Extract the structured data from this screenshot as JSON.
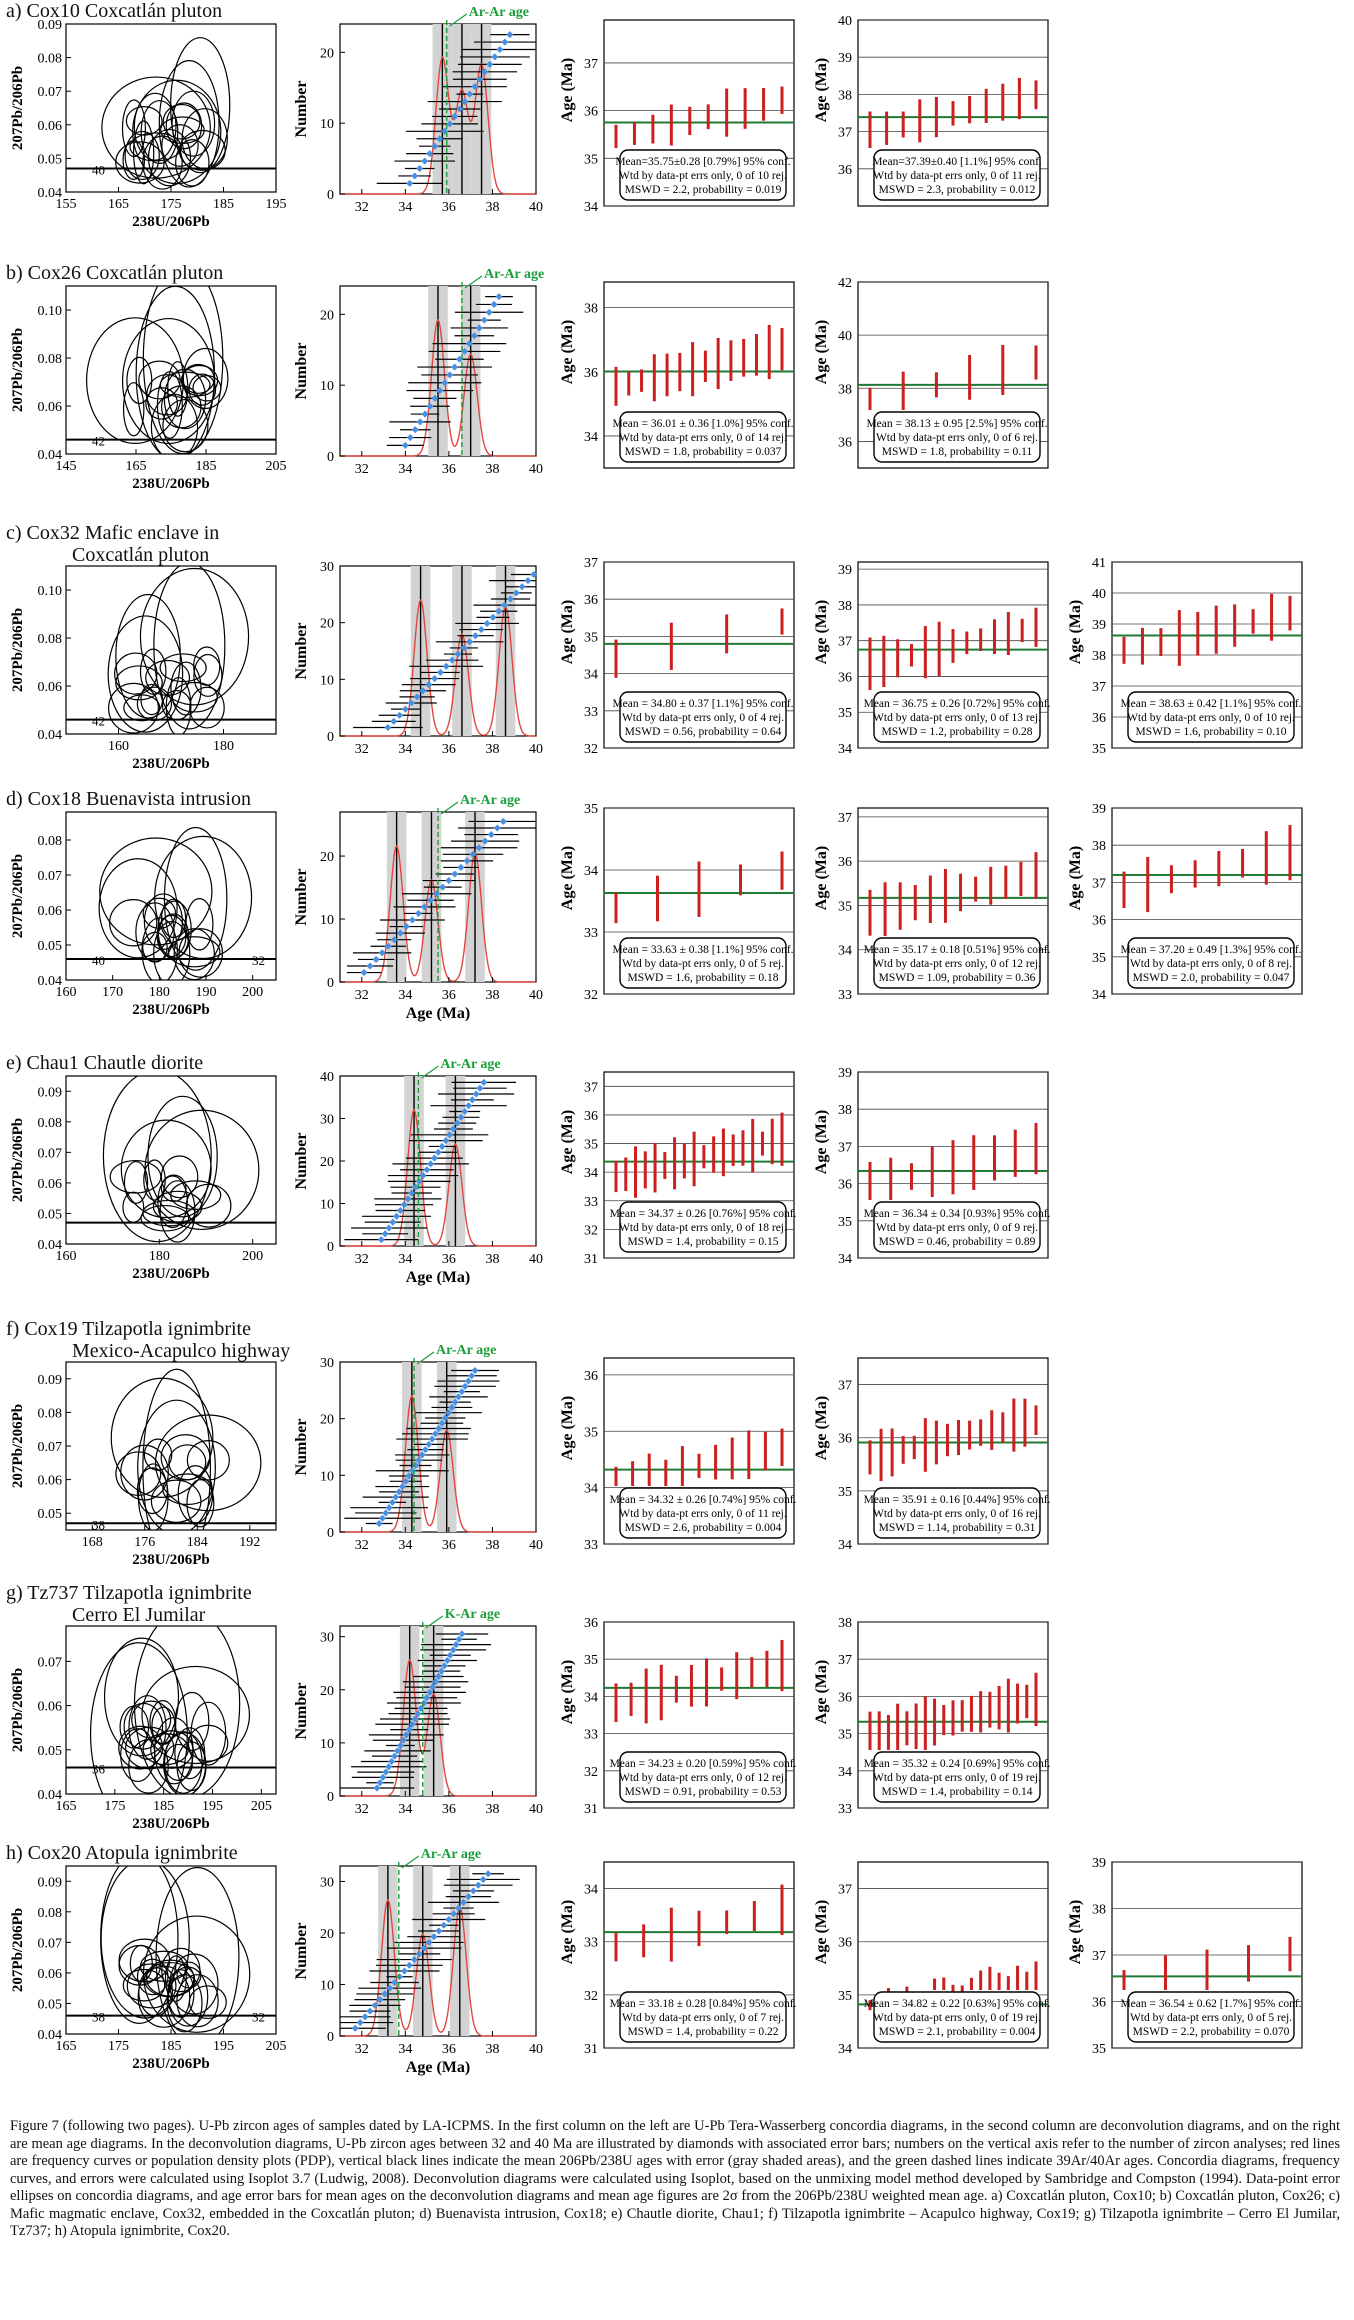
{
  "figure": {
    "caption": "Figure 7 (following two pages). U-Pb zircon ages of samples dated by LA-ICPMS. In the first column on the left are U-Pb Tera-Wasserberg concordia diagrams, in the second column are deconvolution diagrams, and on the right are mean age diagrams. In the deconvolution diagrams, U-Pb zircon ages between 32 and 40 Ma are illustrated by diamonds with associated error bars; numbers on the vertical axis refer to the number of zircon analyses; red lines are frequency curves or population density plots (PDP), vertical black lines indicate the mean 206Pb/238U ages with error (gray shaded areas), and the green dashed lines indicate 39Ar/40Ar ages. Concordia diagrams, frequency curves, and errors were calculated using Isoplot 3.7 (Ludwig, 2008). Deconvolution diagrams were calculated using Isoplot, based on the unmixing model method developed by Sambridge and Compston (1994). Data-point error ellipses on concordia diagrams, and age error bars for mean ages on the deconvolution diagrams and mean age figures are 2σ from the 206Pb/238U weighted mean age. a) Coxcatlán pluton, Cox10; b) Coxcatlán pluton, Cox26; c) Mafic magmatic enclave, Cox32, embedded in the Coxcatlán pluton; d) Buenavista intrusion, Cox18; e) Chautle diorite, Chau1; f) Tilzapotla ignimbrite – Acapulco highway, Cox19; g) Tilzapotla ignimbrite – Cerro El Jumilar, Tz737; h) Atopula ignimbrite, Cox20."
  },
  "labels": {
    "conc_y": "207Pb/206Pb",
    "conc_x": "238U/206Pb",
    "decon_y": "Number",
    "decon_x": "Age (Ma)",
    "age_y": "Age (Ma)"
  },
  "chart_data": [
    {
      "id": "a",
      "type": "scatter",
      "title": "a) Cox10 Coxcatlán pluton",
      "concordia": {
        "xticks": [
          "155",
          "165",
          "175",
          "185",
          "195"
        ],
        "yticks": [
          "0.04",
          "0.05",
          "0.06",
          "0.07",
          "0.08",
          "0.09"
        ],
        "xlim": [
          155,
          195
        ],
        "ylim": [
          0.04,
          0.09
        ],
        "ref_label": "40",
        "ref_y": 0.047
      },
      "decon": {
        "xticks": [
          "32",
          "34",
          "36",
          "38",
          "40"
        ],
        "yticks": [
          "0",
          "10",
          "20"
        ],
        "xlim": [
          31,
          40
        ],
        "ymax": 24,
        "means": [
          35.7,
          36.6,
          37.5
        ],
        "argon": 35.9,
        "arlabel": "Ar-Ar age",
        "n": 21
      },
      "mean_ages": [
        {
          "ylim": [
            34,
            37.9
          ],
          "yticks": [
            "34",
            "35",
            "36",
            "37"
          ],
          "mean": 35.75,
          "n": 10,
          "text": [
            "Mean=35.75±0.28 [0.79%] 95% conf.",
            "Wtd by data-pt errs only, 0 of 10 rej.",
            "MSWD = 2.2, probability = 0.019"
          ]
        },
        {
          "ylim": [
            35,
            40
          ],
          "yticks": [
            "36",
            "37",
            "38",
            "39",
            "40"
          ],
          "mean": 37.39,
          "n": 11,
          "text": [
            "Mean=37.39±0.40 [1.1%] 95% conf.",
            "Wtd by data-pt errs only, 0 of 11 rej.",
            "MSWD = 2.3, probability = 0.012"
          ]
        }
      ]
    },
    {
      "id": "b",
      "type": "scatter",
      "title": "b) Cox26 Coxcatlán pluton",
      "concordia": {
        "xticks": [
          "145",
          "165",
          "185",
          "205"
        ],
        "yticks": [
          "0.04",
          "0.06",
          "0.08",
          "0.10"
        ],
        "xlim": [
          145,
          205
        ],
        "ylim": [
          0.04,
          0.11
        ],
        "ref_label": "42",
        "ref_y": 0.046
      },
      "decon": {
        "xticks": [
          "32",
          "34",
          "36",
          "38",
          "40"
        ],
        "yticks": [
          "0",
          "10",
          "20"
        ],
        "xlim": [
          31,
          40
        ],
        "ymax": 24,
        "means": [
          35.5,
          37.0
        ],
        "argon": 36.6,
        "arlabel": "Ar-Ar age",
        "n": 20
      },
      "mean_ages": [
        {
          "ylim": [
            33,
            38.8
          ],
          "yticks": [
            "34",
            "36",
            "38"
          ],
          "mean": 36.01,
          "n": 14,
          "text": [
            "Mean = 36.01 ± 0.36 [1.0%] 95% conf.",
            "Wtd by data-pt errs only, 0 of 14 rej.",
            "MSWD = 1.8, probability = 0.037"
          ]
        },
        {
          "ylim": [
            35,
            42
          ],
          "yticks": [
            "36",
            "38",
            "40",
            "42"
          ],
          "mean": 38.13,
          "n": 6,
          "text": [
            "Mean = 38.13 ± 0.95 [2.5%] 95% conf.",
            "Wtd by data-pt errs only, 0 of 6 rej.",
            "MSWD = 1.8, probability = 0.11"
          ]
        }
      ]
    },
    {
      "id": "c",
      "type": "scatter",
      "title": "c) Cox32 Mafic enclave in",
      "title2": "Coxcatlán pluton",
      "concordia": {
        "xticks": [
          "160",
          "180"
        ],
        "yticks": [
          "0.04",
          "0.06",
          "0.08",
          "0.10"
        ],
        "xlim": [
          150,
          190
        ],
        "ylim": [
          0.04,
          0.11
        ],
        "ref_label": "42",
        "ref_y": 0.046
      },
      "decon": {
        "xticks": [
          "32",
          "34",
          "36",
          "38",
          "40"
        ],
        "yticks": [
          "0",
          "10",
          "20",
          "30"
        ],
        "xlim": [
          31,
          40
        ],
        "ymax": 30,
        "means": [
          34.7,
          36.6,
          38.6
        ],
        "argon": null,
        "arlabel": "",
        "n": 26
      },
      "mean_ages": [
        {
          "ylim": [
            32,
            37
          ],
          "yticks": [
            "32",
            "33",
            "34",
            "35",
            "36",
            "37"
          ],
          "mean": 34.8,
          "n": 4,
          "text": [
            "Mean = 34.80 ± 0.37 [1.1%] 95% conf.",
            "Wtd by data-pt errs only, 0 of 4 rej.",
            "MSWD = 0.56, probability = 0.64"
          ]
        },
        {
          "ylim": [
            34,
            39.2
          ],
          "yticks": [
            "34",
            "35",
            "36",
            "37",
            "38",
            "39"
          ],
          "mean": 36.75,
          "n": 13,
          "text": [
            "Mean = 36.75 ± 0.26 [0.72%] 95% conf.",
            "Wtd by data-pt errs only, 0 of 13 rej.",
            "MSWD = 1.2, probability = 0.28"
          ]
        },
        {
          "ylim": [
            35,
            41
          ],
          "yticks": [
            "35",
            "36",
            "37",
            "38",
            "39",
            "40",
            "41"
          ],
          "mean": 38.63,
          "n": 10,
          "text": [
            "Mean = 38.63 ± 0.42 [1.1%] 95% conf.",
            "Wtd by data-pt errs only, 0 of 10 rej.",
            "MSWD = 1.6, probability = 0.10"
          ]
        }
      ]
    },
    {
      "id": "d",
      "type": "scatter",
      "title": "d) Cox18 Buenavista intrusion",
      "concordia": {
        "xticks": [
          "160",
          "170",
          "180",
          "190",
          "200"
        ],
        "yticks": [
          "0.04",
          "0.05",
          "0.06",
          "0.07",
          "0.08"
        ],
        "xlim": [
          160,
          205
        ],
        "ylim": [
          0.04,
          0.088
        ],
        "ref_label": "40",
        "ref_y": 0.046,
        "ref_label2": "32"
      },
      "decon": {
        "xticks": [
          "32",
          "34",
          "36",
          "38",
          "40"
        ],
        "yticks": [
          "0",
          "10",
          "20"
        ],
        "xlim": [
          31,
          40
        ],
        "ymax": 27,
        "means": [
          33.6,
          35.2,
          37.2
        ],
        "argon": 35.5,
        "arlabel": "Ar-Ar age",
        "n": 24
      },
      "mean_ages": [
        {
          "ylim": [
            32,
            35
          ],
          "yticks": [
            "32",
            "33",
            "34",
            "35"
          ],
          "mean": 33.63,
          "n": 5,
          "text": [
            "Mean = 33.63 ± 0.38 [1.1%] 95% conf.",
            "Wtd by data-pt errs only, 0 of 5 rej.",
            "MSWD = 1.6, probability = 0.18"
          ]
        },
        {
          "ylim": [
            33,
            37.2
          ],
          "yticks": [
            "33",
            "34",
            "35",
            "36",
            "37"
          ],
          "mean": 35.17,
          "n": 12,
          "text": [
            "Mean = 35.17 ± 0.18 [0.51%] 95% conf.",
            "Wtd by data-pt errs only, 0 of 12 rej.",
            "MSWD = 1.09, probability = 0.36"
          ]
        },
        {
          "ylim": [
            34,
            39
          ],
          "yticks": [
            "34",
            "35",
            "36",
            "37",
            "38",
            "39"
          ],
          "mean": 37.2,
          "n": 8,
          "text": [
            "Mean = 37.20 ± 0.49 [1.3%] 95% conf.",
            "Wtd by data-pt errs only, 0 of 8 rej.",
            "MSWD = 2.0, probability = 0.047"
          ]
        }
      ]
    },
    {
      "id": "e",
      "type": "scatter",
      "title": "e) Chau1 Chautle diorite",
      "concordia": {
        "xticks": [
          "160",
          "180",
          "200"
        ],
        "yticks": [
          "0.04",
          "0.05",
          "0.06",
          "0.07",
          "0.08",
          "0.09"
        ],
        "xlim": [
          160,
          205
        ],
        "ylim": [
          0.04,
          0.095
        ],
        "ref_label": "",
        "ref_y": 0.047
      },
      "decon": {
        "xticks": [
          "32",
          "34",
          "36",
          "38",
          "40"
        ],
        "yticks": [
          "0",
          "10",
          "20",
          "30",
          "40"
        ],
        "xlim": [
          31,
          40
        ],
        "ymax": 40,
        "means": [
          34.4,
          36.3
        ],
        "argon": 34.6,
        "arlabel": "Ar-Ar age",
        "n": 28
      },
      "mean_ages": [
        {
          "ylim": [
            31,
            37.5
          ],
          "yticks": [
            "31",
            "32",
            "33",
            "34",
            "35",
            "36",
            "37"
          ],
          "mean": 34.37,
          "n": 18,
          "text": [
            "Mean = 34.37 ± 0.26 [0.76%] 95% conf.",
            "Wtd by data-pt errs only, 0 of 18 rej.",
            "MSWD = 1.4, probability = 0.15"
          ]
        },
        {
          "ylim": [
            34,
            39
          ],
          "yticks": [
            "34",
            "35",
            "36",
            "37",
            "38",
            "39"
          ],
          "mean": 36.34,
          "n": 9,
          "text": [
            "Mean = 36.34 ± 0.34 [0.93%] 95% conf.",
            "Wtd by data-pt errs only, 0 of 9 rej.",
            "MSWD = 0.46, probability = 0.89"
          ]
        }
      ]
    },
    {
      "id": "f",
      "type": "scatter",
      "title": "f) Cox19 Tilzapotla ignimbrite",
      "title2": "Mexico-Acapulco highway",
      "concordia": {
        "xticks": [
          "168",
          "176",
          "184",
          "192"
        ],
        "yticks": [
          "0.05",
          "0.06",
          "0.07",
          "0.08",
          "0.09"
        ],
        "xlim": [
          164,
          196
        ],
        "ylim": [
          0.045,
          0.095
        ],
        "ref_label": "38",
        "ref_y": 0.047
      },
      "decon": {
        "xticks": [
          "32",
          "34",
          "36",
          "38",
          "40"
        ],
        "yticks": [
          "0",
          "10",
          "20",
          "30"
        ],
        "xlim": [
          31,
          40
        ],
        "ymax": 30,
        "means": [
          34.3,
          35.9
        ],
        "argon": 34.4,
        "arlabel": "Ar-Ar age",
        "n": 30
      },
      "mean_ages": [
        {
          "ylim": [
            33,
            36.3
          ],
          "yticks": [
            "33",
            "34",
            "35",
            "36"
          ],
          "mean": 34.32,
          "n": 11,
          "text": [
            "Mean = 34.32 ± 0.26 [0.74%] 95% conf.",
            "Wtd by data-pt errs only, 0 of 11 rej.",
            "MSWD = 2.6, probability = 0.004"
          ]
        },
        {
          "ylim": [
            34,
            37.5
          ],
          "yticks": [
            "34",
            "35",
            "36",
            "37"
          ],
          "mean": 35.91,
          "n": 16,
          "text": [
            "Mean = 35.91 ± 0.16 [0.44%] 95% conf.",
            "Wtd by data-pt errs only, 0 of 16 rej.",
            "MSWD = 1.14, probability = 0.31"
          ]
        }
      ]
    },
    {
      "id": "g",
      "type": "scatter",
      "title": "g) Tz737 Tilzapotla ignimbrite",
      "title2": "Cerro El Jumilar",
      "concordia": {
        "xticks": [
          "165",
          "175",
          "185",
          "195",
          "205"
        ],
        "yticks": [
          "0.04",
          "0.05",
          "0.06",
          "0.07"
        ],
        "xlim": [
          165,
          208
        ],
        "ylim": [
          0.04,
          0.078
        ],
        "ref_label": "36",
        "ref_y": 0.046
      },
      "decon": {
        "xticks": [
          "32",
          "34",
          "36",
          "38",
          "40"
        ],
        "yticks": [
          "0",
          "10",
          "20",
          "30"
        ],
        "xlim": [
          31,
          40
        ],
        "ymax": 32,
        "means": [
          34.2,
          35.3
        ],
        "argon": 34.8,
        "arlabel": "K-Ar age",
        "n": 30
      },
      "mean_ages": [
        {
          "ylim": [
            31,
            36
          ],
          "yticks": [
            "31",
            "32",
            "33",
            "34",
            "35",
            "36"
          ],
          "mean": 34.23,
          "n": 12,
          "text": [
            "Mean = 34.23 ± 0.20 [0.59%] 95% conf.",
            "Wtd by data-pt errs only, 0 of 12 rej.",
            "MSWD = 0.91, probability = 0.53"
          ]
        },
        {
          "ylim": [
            33,
            38
          ],
          "yticks": [
            "33",
            "34",
            "35",
            "36",
            "37",
            "38"
          ],
          "mean": 35.32,
          "n": 19,
          "text": [
            "Mean = 35.32 ± 0.24 [0.69%] 95% conf.",
            "Wtd by data-pt errs only, 0 of 19 rej.",
            "MSWD = 1.4, probability = 0.14"
          ]
        }
      ]
    },
    {
      "id": "h",
      "type": "scatter",
      "title": "h) Cox20 Atopula ignimbrite",
      "concordia": {
        "xticks": [
          "165",
          "175",
          "185",
          "195",
          "205"
        ],
        "yticks": [
          "0.04",
          "0.05",
          "0.06",
          "0.07",
          "0.08",
          "0.09"
        ],
        "xlim": [
          165,
          205
        ],
        "ylim": [
          0.04,
          0.095
        ],
        "ref_label": "38",
        "ref_y": 0.046,
        "ref_label2": "32"
      },
      "decon": {
        "xticks": [
          "32",
          "34",
          "36",
          "38",
          "40"
        ],
        "yticks": [
          "0",
          "10",
          "20",
          "30"
        ],
        "xlim": [
          31,
          40
        ],
        "ymax": 33,
        "means": [
          33.2,
          34.8,
          36.5
        ],
        "argon": 33.7,
        "arlabel": "Ar-Ar age",
        "n": 28
      },
      "mean_ages": [
        {
          "ylim": [
            31,
            34.5
          ],
          "yticks": [
            "31",
            "32",
            "33",
            "34"
          ],
          "mean": 33.18,
          "n": 7,
          "text": [
            "Mean = 33.18 ± 0.28 [0.84%] 95% conf.",
            "Wtd by data-pt errs only, 0 of 7 rej.",
            "MSWD = 1.4, probability = 0.22"
          ]
        },
        {
          "ylim": [
            34,
            37.5
          ],
          "yticks": [
            "34",
            "35",
            "36",
            "37"
          ],
          "mean": 34.82,
          "n": 19,
          "text": [
            "Mean = 34.82 ± 0.22 [0.63%] 95% conf.",
            "Wtd by data-pt errs only, 0 of 19 rej.",
            "MSWD = 2.1, probability = 0.004"
          ]
        },
        {
          "ylim": [
            35,
            39
          ],
          "yticks": [
            "35",
            "36",
            "37",
            "38",
            "39"
          ],
          "mean": 36.54,
          "n": 5,
          "text": [
            "Mean = 36.54 ± 0.62 [1.7%] 95% conf.",
            "Wtd by data-pt errs only, 0 of 5 rej.",
            "MSWD = 2.2, probability = 0.070"
          ]
        }
      ]
    }
  ]
}
